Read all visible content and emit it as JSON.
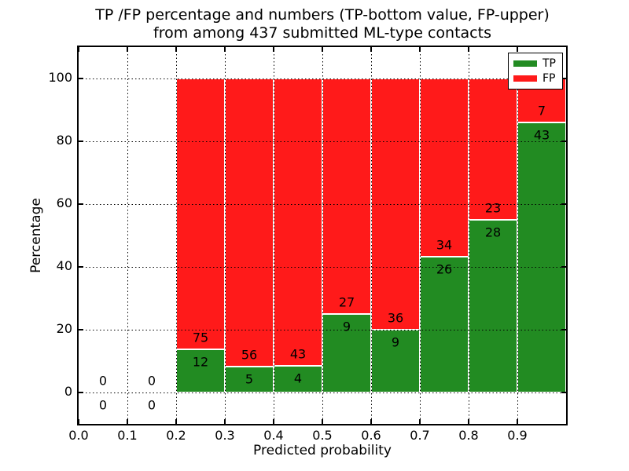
{
  "chart_data": {
    "type": "stacked_bar",
    "title": [
      "TP /FP percentage and numbers (TP-bottom value, FP-upper)",
      "from among 437 submitted ML-type contacts"
    ],
    "xlabel": "Predicted probability",
    "ylabel": "Percentage",
    "xlim": [
      0.0,
      1.0
    ],
    "ylim": [
      -10,
      110
    ],
    "grid": true,
    "legend_position": "upper-right",
    "xticks": [
      {
        "v": 0.0,
        "label": "0.0"
      },
      {
        "v": 0.1,
        "label": "0.1"
      },
      {
        "v": 0.2,
        "label": "0.2"
      },
      {
        "v": 0.3,
        "label": "0.3"
      },
      {
        "v": 0.4,
        "label": "0.4"
      },
      {
        "v": 0.5,
        "label": "0.5"
      },
      {
        "v": 0.6,
        "label": "0.6"
      },
      {
        "v": 0.7,
        "label": "0.7"
      },
      {
        "v": 0.8,
        "label": "0.8"
      },
      {
        "v": 0.9,
        "label": "0.9"
      }
    ],
    "yticks": [
      {
        "v": 0,
        "label": "0"
      },
      {
        "v": 20,
        "label": "20"
      },
      {
        "v": 40,
        "label": "40"
      },
      {
        "v": 60,
        "label": "60"
      },
      {
        "v": 80,
        "label": "80"
      },
      {
        "v": 100,
        "label": "100"
      }
    ],
    "bin_width": 0.1,
    "bins": [
      {
        "x": 0.0,
        "tp": 0,
        "fp": 0
      },
      {
        "x": 0.1,
        "tp": 0,
        "fp": 0
      },
      {
        "x": 0.2,
        "tp": 12,
        "fp": 75
      },
      {
        "x": 0.3,
        "tp": 5,
        "fp": 56
      },
      {
        "x": 0.4,
        "tp": 4,
        "fp": 43
      },
      {
        "x": 0.5,
        "tp": 9,
        "fp": 27
      },
      {
        "x": 0.6,
        "tp": 9,
        "fp": 36
      },
      {
        "x": 0.7,
        "tp": 26,
        "fp": 34
      },
      {
        "x": 0.8,
        "tp": 28,
        "fp": 23
      },
      {
        "x": 0.9,
        "tp": 43,
        "fp": 7
      }
    ],
    "total_contacts": 437,
    "legend": [
      {
        "label": "TP",
        "color": "#228b22"
      },
      {
        "label": "FP",
        "color": "#ff1a1a"
      }
    ],
    "colors": {
      "tp": "#228b22",
      "fp": "#ff1a1a",
      "axis": "#000000",
      "background": "#ffffff"
    }
  }
}
